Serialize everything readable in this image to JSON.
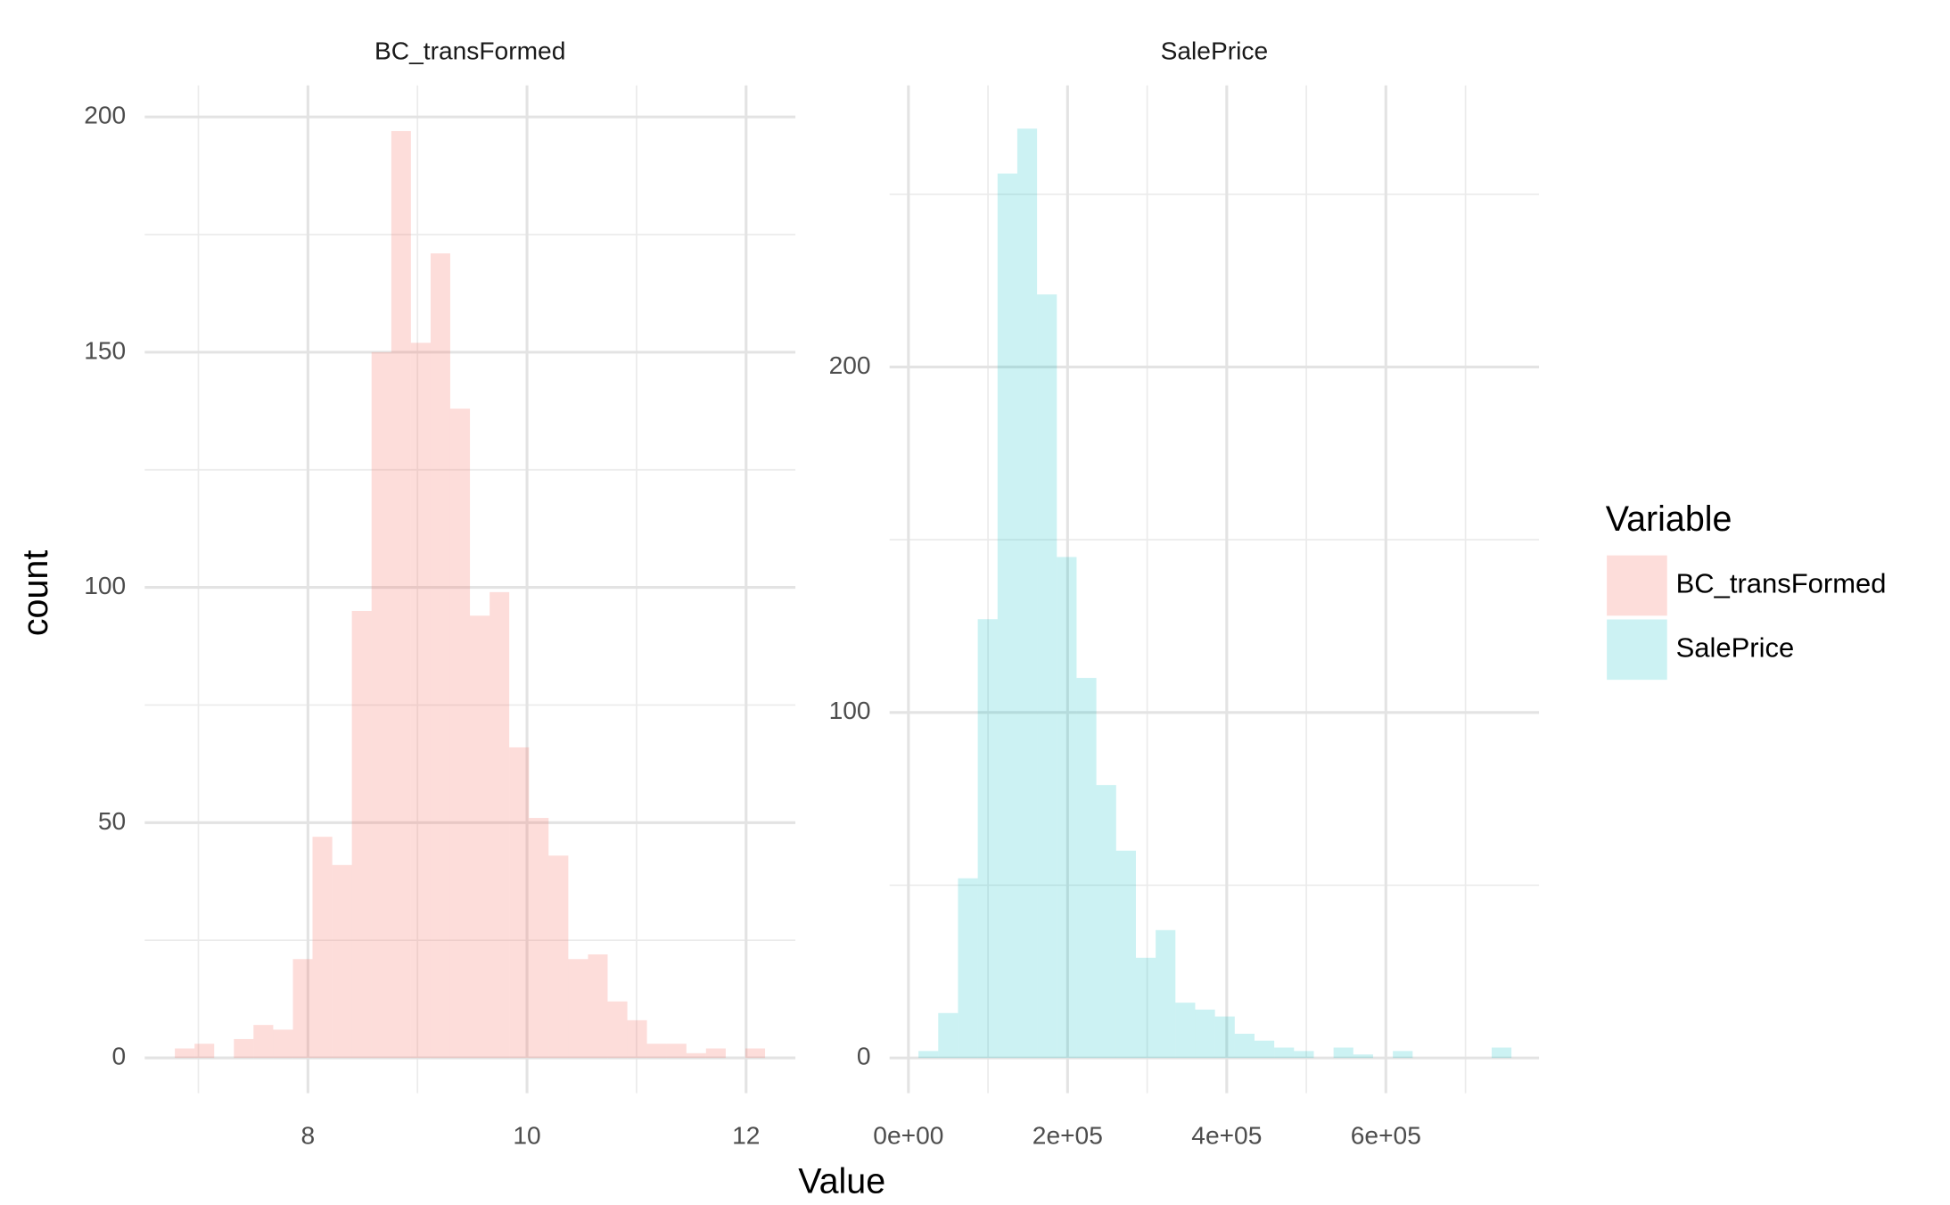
{
  "x_label": "Value",
  "y_label": "count",
  "legend": {
    "title": "Variable",
    "position": "right"
  },
  "chart_data": [
    {
      "type": "histogram",
      "title": "BC_transFormed",
      "color": "#F8766D",
      "opacity": 0.25,
      "bins": [
        6.785,
        6.965,
        7.144,
        7.324,
        7.503,
        7.683,
        7.863,
        8.042,
        8.222,
        8.401,
        8.581,
        8.761,
        8.94,
        9.12,
        9.299,
        9.479,
        9.659,
        9.838,
        10.018,
        10.197,
        10.377,
        10.557,
        10.736,
        10.916,
        11.095,
        11.275,
        11.455,
        11.634,
        11.814,
        11.993,
        12.173
      ],
      "counts": [
        2,
        3,
        0,
        4,
        7,
        6,
        21,
        47,
        41,
        95,
        150,
        197,
        152,
        171,
        138,
        94,
        99,
        66,
        51,
        43,
        21,
        22,
        12,
        8,
        3,
        3,
        1,
        2,
        0,
        2
      ],
      "xlim": [
        6.51,
        12.45
      ],
      "ylim": [
        -7.5,
        206.7
      ],
      "xticks": [
        8,
        10,
        12
      ],
      "yticks": [
        0,
        50,
        100,
        150,
        200
      ],
      "minor_xticks": [
        7,
        9,
        11
      ],
      "minor_yticks": [
        25,
        75,
        125,
        175
      ],
      "grid": true
    },
    {
      "type": "histogram",
      "title": "SalePrice",
      "color": "#00BFC4",
      "opacity": 0.2,
      "bins": [
        12600,
        37440,
        62280,
        87120,
        111960,
        136800,
        161640,
        186480,
        211320,
        236160,
        261000,
        285840,
        310680,
        335520,
        360360,
        385200,
        410040,
        434880,
        459720,
        484560,
        509400,
        534240,
        559080,
        583920,
        608760,
        633600,
        658440,
        683280,
        708120,
        732960,
        757800
      ],
      "counts": [
        2,
        13,
        52,
        127,
        256,
        269,
        221,
        145,
        110,
        79,
        60,
        29,
        37,
        16,
        14,
        12,
        7,
        5,
        3,
        2,
        0,
        3,
        1,
        0,
        2,
        0,
        0,
        0,
        0,
        3
      ],
      "xlim": [
        -23700,
        792400
      ],
      "ylim": [
        -10.2,
        281.5
      ],
      "xticks": [
        {
          "value": 0,
          "label": "0e+00"
        },
        {
          "value": 200000,
          "label": "2e+05"
        },
        {
          "value": 400000,
          "label": "4e+05"
        },
        {
          "value": 600000,
          "label": "6e+05"
        }
      ],
      "yticks": [
        0,
        100,
        200
      ],
      "minor_xticks": [
        100000,
        300000,
        500000,
        700000
      ],
      "minor_yticks": [
        50,
        150,
        250
      ],
      "grid": true
    }
  ]
}
